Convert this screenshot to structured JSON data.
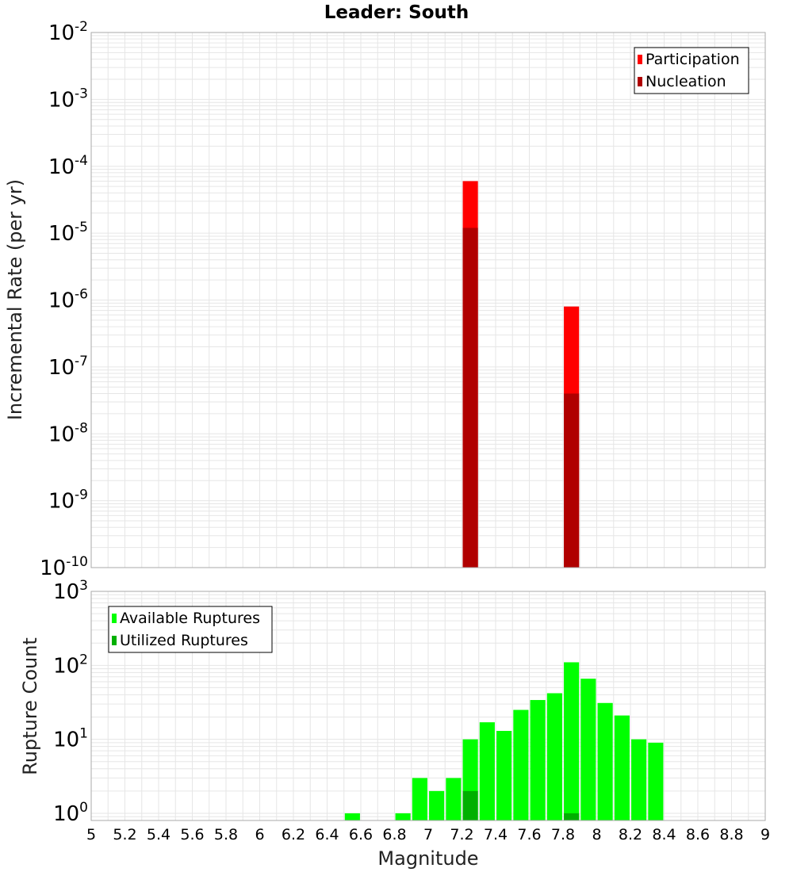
{
  "title": "Leader: South",
  "colors": {
    "participation": "#ff0000",
    "nucleation": "#b00000",
    "available": "#00ff00",
    "utilized": "#00b000",
    "grid": "#e6e6e6",
    "frame": "#aaaaaa"
  },
  "chart_data": [
    {
      "type": "bar",
      "panel": "rates",
      "log_scale_y": true,
      "ylabel": "Incremental Rate (per yr)",
      "ylim": [
        1e-10,
        0.01
      ],
      "xlim": [
        5,
        9
      ],
      "y_ticks": [
        {
          "base": "10",
          "exp": "-10"
        },
        {
          "base": "10",
          "exp": "-9"
        },
        {
          "base": "10",
          "exp": "-8"
        },
        {
          "base": "10",
          "exp": "-7"
        },
        {
          "base": "10",
          "exp": "-6"
        },
        {
          "base": "10",
          "exp": "-5"
        },
        {
          "base": "10",
          "exp": "-4"
        },
        {
          "base": "10",
          "exp": "-3"
        },
        {
          "base": "10",
          "exp": "-2"
        }
      ],
      "legend": {
        "position": "top-right",
        "entries": [
          "Participation",
          "Nucleation"
        ]
      },
      "bar_width": 0.09,
      "series": [
        {
          "name": "Participation",
          "color": "#ff0000",
          "x": [
            7.25,
            7.85
          ],
          "values": [
            6e-05,
            8e-07
          ]
        },
        {
          "name": "Nucleation",
          "color": "#b00000",
          "x": [
            7.25,
            7.85
          ],
          "values": [
            1.2e-05,
            4e-08
          ]
        }
      ],
      "grid": true
    },
    {
      "type": "bar",
      "panel": "counts",
      "log_scale_y": true,
      "xlabel": "Magnitude",
      "ylabel": "Rupture Count",
      "ylim": [
        0.8,
        1000
      ],
      "xlim": [
        5,
        9
      ],
      "x_ticks": [
        "5",
        "5.2",
        "5.4",
        "5.6",
        "5.8",
        "6",
        "6.2",
        "6.4",
        "6.6",
        "6.8",
        "7",
        "7.2",
        "7.4",
        "7.6",
        "7.8",
        "8",
        "8.2",
        "8.4",
        "8.6",
        "8.8",
        "9"
      ],
      "y_ticks": [
        {
          "base": "10",
          "exp": "0"
        },
        {
          "base": "10",
          "exp": "1"
        },
        {
          "base": "10",
          "exp": "2"
        },
        {
          "base": "10",
          "exp": "3"
        }
      ],
      "legend": {
        "position": "top-left",
        "entries": [
          "Available Ruptures",
          "Utilized Ruptures"
        ]
      },
      "bar_width": 0.09,
      "series": [
        {
          "name": "Available Ruptures",
          "color": "#00ff00",
          "x": [
            6.55,
            6.85,
            6.95,
            7.05,
            7.15,
            7.25,
            7.35,
            7.45,
            7.55,
            7.65,
            7.75,
            7.85,
            7.95,
            8.05,
            8.15,
            8.25,
            8.35
          ],
          "values": [
            1,
            1,
            3,
            2,
            3,
            10,
            17,
            13,
            25,
            34,
            42,
            110,
            66,
            31,
            21,
            10,
            9
          ]
        },
        {
          "name": "Utilized Ruptures",
          "color": "#00b000",
          "x": [
            7.25,
            7.85
          ],
          "values": [
            2,
            1
          ]
        }
      ],
      "grid": true
    }
  ]
}
